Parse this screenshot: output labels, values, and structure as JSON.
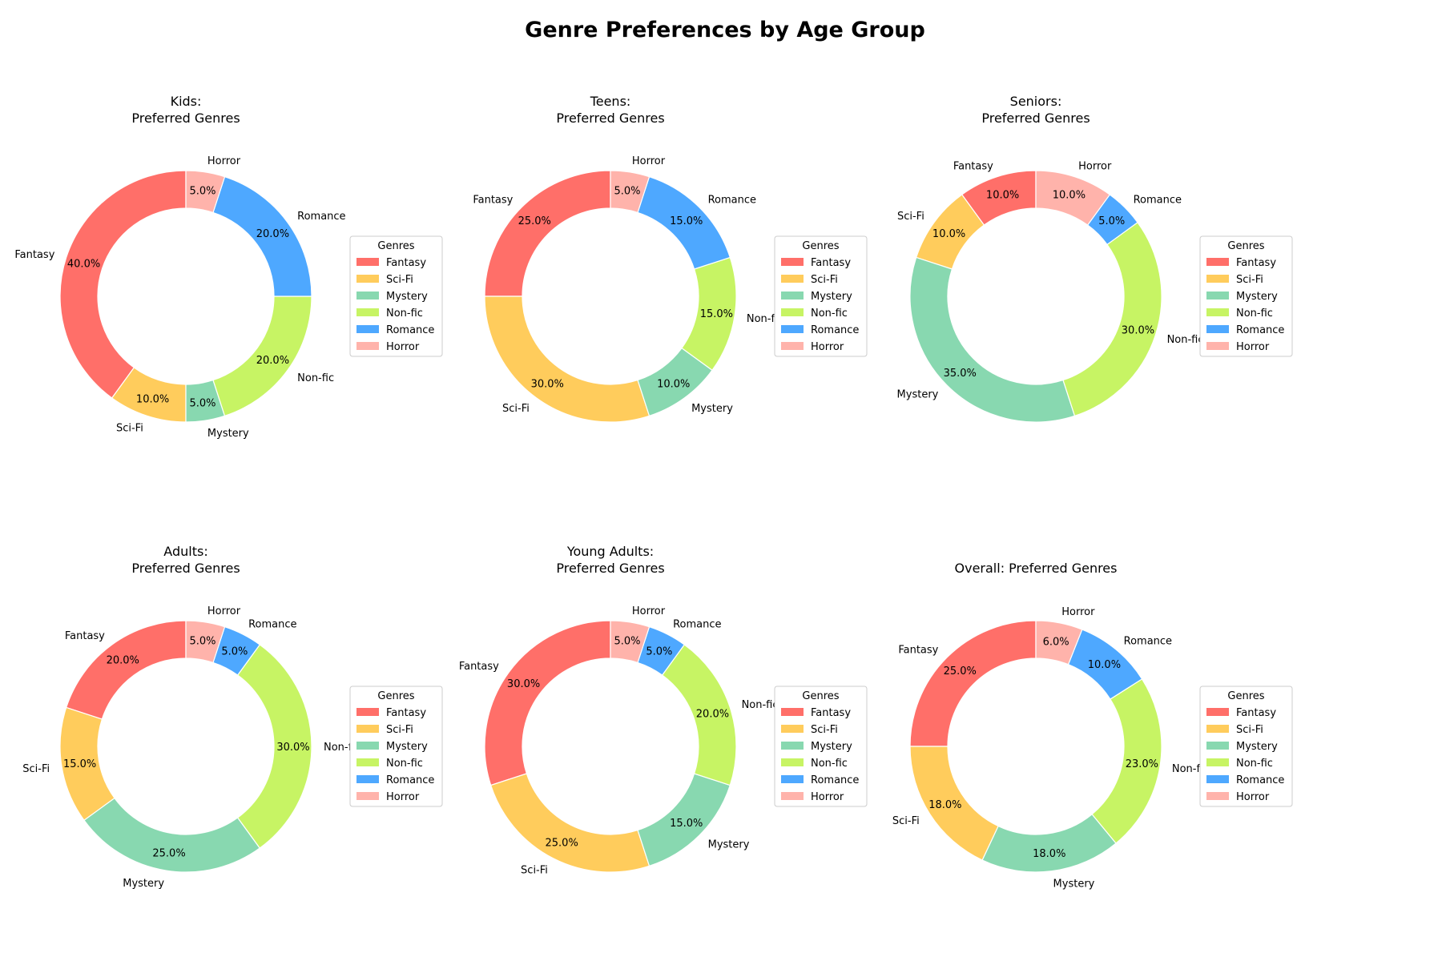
{
  "figure": {
    "title": "Genre Preferences by Age Group"
  },
  "colors": {
    "Fantasy": "#ff6f69",
    "Sci-Fi": "#ffcc5c",
    "Mystery": "#88d8b0",
    "Non-fic": "#c7f464",
    "Romance": "#4ea8ff",
    "Horror": "#ffb3ab"
  },
  "legend_title": "Genres",
  "chart_data": [
    {
      "type": "pie",
      "title": "Kids:\nPreferred Genres",
      "categories": [
        "Fantasy",
        "Sci-Fi",
        "Mystery",
        "Non-fic",
        "Romance",
        "Horror"
      ],
      "values": [
        40,
        10,
        5,
        20,
        20,
        5
      ],
      "value_labels": [
        "40.0%",
        "10.0%",
        "5.0%",
        "20.0%",
        "20.0%",
        "5.0%"
      ],
      "legend": "right"
    },
    {
      "type": "pie",
      "title": "Teens:\nPreferred Genres",
      "categories": [
        "Fantasy",
        "Sci-Fi",
        "Mystery",
        "Non-fic",
        "Romance",
        "Horror"
      ],
      "values": [
        25,
        30,
        10,
        15,
        15,
        5
      ],
      "value_labels": [
        "25.0%",
        "30.0%",
        "10.0%",
        "15.0%",
        "15.0%",
        "5.0%"
      ],
      "legend": "right"
    },
    {
      "type": "pie",
      "title": "Seniors:\nPreferred Genres",
      "categories": [
        "Fantasy",
        "Sci-Fi",
        "Mystery",
        "Non-fic",
        "Romance",
        "Horror"
      ],
      "values": [
        10,
        10,
        35,
        30,
        5,
        10
      ],
      "value_labels": [
        "10.0%",
        "10.0%",
        "35.0%",
        "30.0%",
        "5.0%",
        "10.0%"
      ],
      "legend": "right"
    },
    {
      "type": "pie",
      "title": "Adults:\nPreferred Genres",
      "categories": [
        "Fantasy",
        "Sci-Fi",
        "Mystery",
        "Non-fic",
        "Romance",
        "Horror"
      ],
      "values": [
        20,
        15,
        25,
        30,
        5,
        5
      ],
      "value_labels": [
        "20.0%",
        "15.0%",
        "25.0%",
        "30.0%",
        "5.0%",
        "5.0%"
      ],
      "legend": "right"
    },
    {
      "type": "pie",
      "title": "Young Adults:\nPreferred Genres",
      "categories": [
        "Fantasy",
        "Sci-Fi",
        "Mystery",
        "Non-fic",
        "Romance",
        "Horror"
      ],
      "values": [
        30,
        25,
        15,
        20,
        5,
        5
      ],
      "value_labels": [
        "30.0%",
        "25.0%",
        "15.0%",
        "20.0%",
        "5.0%",
        "5.0%"
      ],
      "legend": "right"
    },
    {
      "type": "pie",
      "title": "Overall: Preferred Genres",
      "categories": [
        "Fantasy",
        "Sci-Fi",
        "Mystery",
        "Non-fic",
        "Romance",
        "Horror"
      ],
      "values": [
        25,
        18,
        18,
        23,
        10,
        6
      ],
      "value_labels": [
        "25.0%",
        "18.0%",
        "18.0%",
        "23.0%",
        "10.0%",
        "6.0%"
      ],
      "legend": "right"
    }
  ]
}
